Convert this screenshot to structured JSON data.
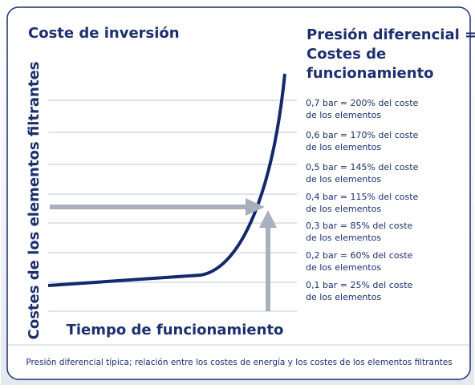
{
  "header": {
    "left_title": "Coste de inversión",
    "right_title": [
      "Presión diferencial =",
      "Costes de",
      "funcionamiento"
    ]
  },
  "axes": {
    "y_label": "Costes de los elementos filtrantes",
    "x_label": "Tiempo de funcionamiento"
  },
  "levels": [
    [
      "0,7 bar = 200% del coste",
      "de los elementos"
    ],
    [
      "0,6 bar = 170% del coste",
      "de los elementos"
    ],
    [
      "0,5 bar = 145% del coste",
      "de los elementos"
    ],
    [
      "0,4 bar = 115% del coste",
      "de los elementos"
    ],
    [
      "0,3 bar = 85% del coste",
      "de los elementos"
    ],
    [
      "0,2 bar = 60% del coste",
      "de los elementos"
    ],
    [
      "0,1 bar = 25% del coste",
      "de los elementos"
    ]
  ],
  "caption": "Presión diferencial típica; relación entre los costes de energía y los costes de los elementos filtrantes"
}
